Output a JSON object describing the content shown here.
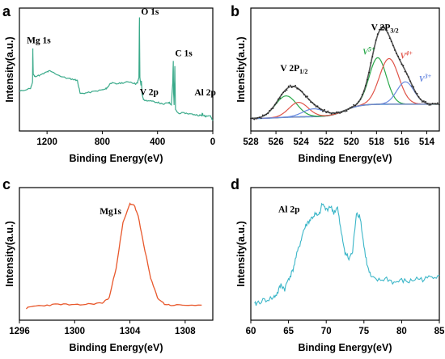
{
  "chart_data": [
    {
      "panel": "a",
      "type": "line",
      "xlabel": "Binding Energy(eV)",
      "ylabel": "Intensity(a.u.)",
      "xlim": [
        1400,
        0
      ],
      "xticks": [
        1200,
        800,
        400,
        0
      ],
      "color": "#3aaa8a",
      "annotations": [
        {
          "text": "Mg 1s",
          "x": 1300
        },
        {
          "text": "O 1s",
          "x": 531
        },
        {
          "text": "V 2p",
          "x": 517
        },
        {
          "text": "C 1s",
          "x": 285
        },
        {
          "text": "Al 2p",
          "x": 74
        }
      ],
      "series": [
        {
          "x": [
            1400,
            1320,
            1305,
            1303,
            1300,
            1290,
            1250,
            1200,
            1180,
            1100,
            1050,
            1000,
            980,
            960,
            900,
            820,
            780,
            760,
            740,
            700,
            650,
            600,
            560,
            545,
            535,
            531,
            528,
            520,
            517,
            512,
            500,
            450,
            400,
            360,
            320,
            300,
            290,
            286,
            284,
            280,
            275,
            270,
            250,
            200,
            150,
            100,
            80,
            74,
            70,
            50,
            20,
            0
          ],
          "y": [
            0.32,
            0.35,
            0.4,
            0.72,
            0.48,
            0.46,
            0.47,
            0.5,
            0.51,
            0.46,
            0.44,
            0.43,
            0.42,
            0.3,
            0.31,
            0.33,
            0.34,
            0.36,
            0.4,
            0.39,
            0.4,
            0.41,
            0.39,
            0.4,
            0.45,
            1.0,
            0.45,
            0.38,
            0.42,
            0.3,
            0.24,
            0.23,
            0.22,
            0.2,
            0.22,
            0.2,
            0.4,
            0.6,
            0.32,
            0.2,
            0.55,
            0.15,
            0.12,
            0.12,
            0.11,
            0.1,
            0.1,
            0.12,
            0.1,
            0.09,
            0.1,
            0.05
          ]
        }
      ]
    },
    {
      "panel": "b",
      "type": "line",
      "xlabel": "Binding Energy(eV)",
      "ylabel": "Intensity(a.u.)",
      "xlim": [
        528,
        513
      ],
      "xticks": [
        528,
        526,
        524,
        522,
        520,
        518,
        516,
        514
      ],
      "annotations": [
        {
          "text": "V 2P",
          "sub": "1/2",
          "x": 524.5
        },
        {
          "text": "V 2P",
          "sub": "3/2",
          "x": 516.5
        },
        {
          "text": "V",
          "sup": "5+",
          "x": 518.2,
          "color": "#2aa84a"
        },
        {
          "text": "V",
          "sup": "4+",
          "x": 516.5,
          "color": "#e0554a"
        },
        {
          "text": "V",
          "sup": "3+",
          "x": 515.0,
          "color": "#6a8ae0"
        }
      ],
      "background": {
        "name": "background",
        "color": "#3bb6c8"
      },
      "series": [
        {
          "name": "V5+ 2p3/2",
          "color": "#2aa84a",
          "center": 517.9,
          "height": 0.48,
          "fwhm": 1.6
        },
        {
          "name": "V4+ 2p3/2",
          "color": "#e0554a",
          "center": 517.0,
          "height": 0.47,
          "fwhm": 1.8
        },
        {
          "name": "V3+ 2p3/2",
          "color": "#6a8ae0",
          "center": 515.7,
          "height": 0.23,
          "fwhm": 1.6
        },
        {
          "name": "V5+ 2p1/2",
          "color": "#2aa84a",
          "center": 525.2,
          "height": 0.22,
          "fwhm": 2.0
        },
        {
          "name": "V4+ 2p1/2",
          "color": "#e0554a",
          "center": 524.2,
          "height": 0.15,
          "fwhm": 1.8
        },
        {
          "name": "V3+ 2p1/2",
          "color": "#6a8ae0",
          "center": 523.0,
          "height": 0.08,
          "fwhm": 2.0
        }
      ]
    },
    {
      "panel": "c",
      "type": "line",
      "xlabel": "Binding Energy(eV)",
      "ylabel": "Intensity(a.u.)",
      "xlim": [
        1296,
        1310
      ],
      "xticks": [
        1296,
        1300,
        1304,
        1308
      ],
      "color": "#e8582c",
      "annotations": [
        {
          "text": "Mg1s",
          "x": 1303.1
        }
      ],
      "series": [
        {
          "x": [
            1296.5,
            1297,
            1298,
            1299,
            1300,
            1301,
            1302,
            1302.5,
            1303,
            1303.5,
            1304,
            1304.3,
            1304.6,
            1305,
            1305.5,
            1306,
            1306.5,
            1307,
            1308,
            1309.2
          ],
          "y": [
            0.02,
            0.04,
            0.05,
            0.06,
            0.05,
            0.06,
            0.07,
            0.12,
            0.4,
            0.82,
            1.0,
            0.99,
            0.88,
            0.62,
            0.3,
            0.12,
            0.06,
            0.05,
            0.05,
            0.05
          ]
        }
      ]
    },
    {
      "panel": "d",
      "type": "line",
      "xlabel": "Binding Energy(eV)",
      "ylabel": "Intensity(a.u.)",
      "xlim": [
        60,
        85
      ],
      "xticks": [
        60,
        65,
        70,
        75,
        80,
        85
      ],
      "color": "#3bb6c8",
      "annotations": [
        {
          "text": "Al 2p",
          "x": 64.5
        }
      ],
      "series": [
        {
          "x": [
            60.5,
            61,
            62,
            63,
            63.5,
            64,
            64.5,
            65,
            65.5,
            66,
            66.5,
            67,
            67.5,
            68,
            68.5,
            69,
            69.5,
            70,
            70.5,
            71,
            71.5,
            72,
            72.5,
            73,
            73.5,
            74,
            74.5,
            75,
            75.5,
            76,
            77,
            78,
            79,
            80,
            81,
            82,
            83,
            84,
            85
          ],
          "y": [
            0.05,
            0.08,
            0.1,
            0.12,
            0.16,
            0.24,
            0.2,
            0.3,
            0.36,
            0.5,
            0.62,
            0.75,
            0.82,
            0.86,
            0.9,
            0.88,
            1.0,
            0.94,
            0.98,
            0.92,
            0.96,
            0.72,
            0.55,
            0.48,
            0.55,
            0.92,
            0.88,
            0.6,
            0.4,
            0.3,
            0.28,
            0.3,
            0.26,
            0.28,
            0.27,
            0.3,
            0.29,
            0.32,
            0.33
          ]
        }
      ]
    }
  ]
}
